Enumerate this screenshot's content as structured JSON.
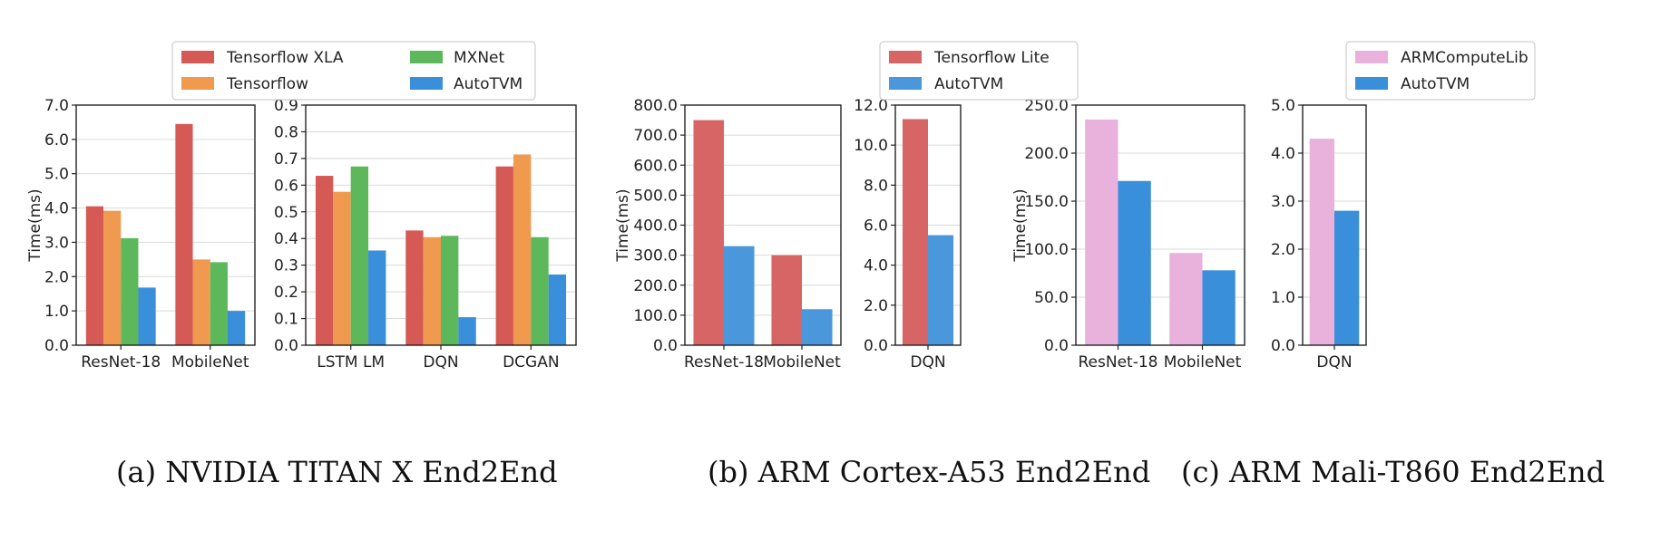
{
  "colors": {
    "tf_xla": "#d55a55",
    "tensorflow": "#ef9a4e",
    "mxnet": "#5cb85a",
    "autotvm": "#3a8fdb",
    "tflite": "#d86565",
    "autotvm_b": "#4a97dc",
    "armcl": "#e8b2dc",
    "autotvm_c": "#3a8fdb"
  },
  "figures": [
    {
      "caption": "(a) NVIDIA TITAN X End2End",
      "legend": [
        "Tensorflow XLA",
        "Tensorflow",
        "MXNet",
        "AutoTVM"
      ]
    },
    {
      "caption": "(b) ARM Cortex-A53 End2End",
      "legend": [
        "Tensorflow Lite",
        "AutoTVM"
      ]
    },
    {
      "caption": "(c) ARM Mali-T860 End2End",
      "legend": [
        "ARMComputeLib",
        "AutoTVM"
      ]
    }
  ],
  "chart_data": [
    {
      "type": "bar",
      "ylabel": "Time(ms)",
      "ylim": [
        0,
        7.0
      ],
      "yticks": [
        "0.0",
        "1.0",
        "2.0",
        "3.0",
        "4.0",
        "5.0",
        "6.0",
        "7.0"
      ],
      "grid": true,
      "categories": [
        "ResNet-18",
        "MobileNet"
      ],
      "series": [
        {
          "name": "Tensorflow XLA",
          "values": [
            4.05,
            6.45
          ]
        },
        {
          "name": "Tensorflow",
          "values": [
            3.92,
            2.5
          ]
        },
        {
          "name": "MXNet",
          "values": [
            3.12,
            2.42
          ]
        },
        {
          "name": "AutoTVM",
          "values": [
            1.68,
            1.0
          ]
        }
      ]
    },
    {
      "type": "bar",
      "ylabel": "",
      "ylim": [
        0,
        0.9
      ],
      "yticks": [
        "0.0",
        "0.1",
        "0.2",
        "0.3",
        "0.4",
        "0.5",
        "0.6",
        "0.7",
        "0.8",
        "0.9"
      ],
      "grid": true,
      "categories": [
        "LSTM LM",
        "DQN",
        "DCGAN"
      ],
      "series": [
        {
          "name": "Tensorflow XLA",
          "values": [
            0.635,
            0.43,
            0.67
          ]
        },
        {
          "name": "Tensorflow",
          "values": [
            0.575,
            0.405,
            0.715
          ]
        },
        {
          "name": "MXNet",
          "values": [
            0.67,
            0.41,
            0.405
          ]
        },
        {
          "name": "AutoTVM",
          "values": [
            0.355,
            0.105,
            0.265
          ]
        }
      ]
    },
    {
      "type": "bar",
      "ylabel": "Time(ms)",
      "ylim": [
        0,
        800
      ],
      "yticks": [
        "0.0",
        "100.0",
        "200.0",
        "300.0",
        "400.0",
        "500.0",
        "600.0",
        "700.0",
        "800.0"
      ],
      "grid": true,
      "categories": [
        "ResNet-18",
        "MobileNet"
      ],
      "series": [
        {
          "name": "Tensorflow Lite",
          "values": [
            750,
            300
          ]
        },
        {
          "name": "AutoTVM",
          "values": [
            330,
            120
          ]
        }
      ]
    },
    {
      "type": "bar",
      "ylabel": "",
      "ylim": [
        0,
        12.0
      ],
      "yticks": [
        "0.0",
        "2.0",
        "4.0",
        "6.0",
        "8.0",
        "10.0",
        "12.0"
      ],
      "grid": true,
      "categories": [
        "DQN"
      ],
      "series": [
        {
          "name": "Tensorflow Lite",
          "values": [
            11.3
          ]
        },
        {
          "name": "AutoTVM",
          "values": [
            5.5
          ]
        }
      ]
    },
    {
      "type": "bar",
      "ylabel": "Time(ms)",
      "ylim": [
        0,
        250
      ],
      "yticks": [
        "0.0",
        "50.0",
        "100.0",
        "150.0",
        "200.0",
        "250.0"
      ],
      "grid": true,
      "categories": [
        "ResNet-18",
        "MobileNet"
      ],
      "series": [
        {
          "name": "ARMComputeLib",
          "values": [
            235,
            96
          ]
        },
        {
          "name": "AutoTVM",
          "values": [
            171,
            78
          ]
        }
      ]
    },
    {
      "type": "bar",
      "ylabel": "",
      "ylim": [
        0,
        5.0
      ],
      "yticks": [
        "0.0",
        "1.0",
        "2.0",
        "3.0",
        "4.0",
        "5.0"
      ],
      "grid": true,
      "categories": [
        "DQN"
      ],
      "series": [
        {
          "name": "ARMComputeLib",
          "values": [
            4.3
          ]
        },
        {
          "name": "AutoTVM",
          "values": [
            2.8
          ]
        }
      ]
    }
  ]
}
